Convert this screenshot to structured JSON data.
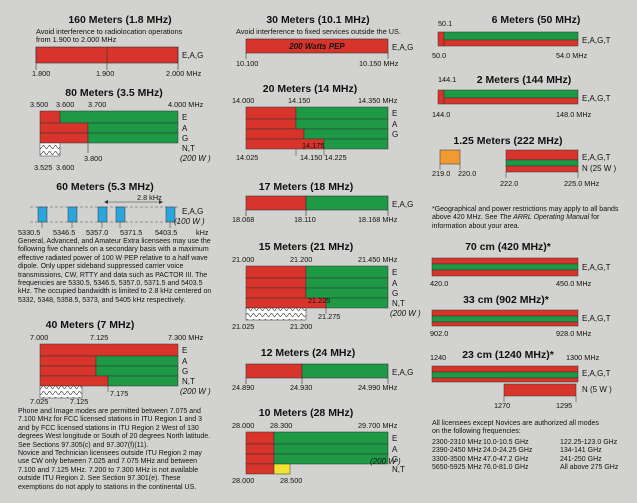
{
  "bands": {
    "m160": {
      "title": "160 Meters (1.8 MHz)",
      "note1": "Avoid interference to radiolocation operations",
      "note2": "from 1.900 to 2.000 MHz",
      "lic": "E,A,G",
      "f1": "1.800",
      "f2": "1.900",
      "f3": "2.000 MHz"
    },
    "m80": {
      "title": "80 Meters (3.5 MHz)",
      "f1": "3.500",
      "f2": "3.600",
      "f3": "3.700",
      "f4": "4.000 MHz",
      "lic_e": "E",
      "lic_a": "A",
      "lic_g": "G",
      "lic_nt": "N,T",
      "power": "(200 W )",
      "f5": "3.800",
      "f6": "3.525",
      "f7": "3.600"
    },
    "m60": {
      "title": "60 Meters (5.3 MHz)",
      "bw": "2.8 kHz",
      "lic": "E,A,G",
      "power": "(100 W )",
      "f1": "5330.5",
      "f2": "5346.5",
      "f3": "5357.0",
      "f4": "5371.5",
      "f5": "5403.5",
      "unit": "kHz"
    },
    "m40": {
      "title": "40 Meters (7 MHz)",
      "f1": "7.000",
      "f2": "7.125",
      "f3": "7.300 MHz",
      "lic_e": "E",
      "lic_a": "A",
      "lic_g": "G",
      "lic_nt": "N,T",
      "power": "(200 W )",
      "f4": "7.175",
      "f5": "7.025",
      "f6": "7.125"
    },
    "m30": {
      "title": "30 Meters (10.1 MHz)",
      "note": "Avoid interference to fixed services outside the US.",
      "pep": "200 Watts PEP",
      "lic": "E,A,G",
      "f1": "10.100",
      "f2": "10.150 MHz"
    },
    "m20": {
      "title": "20 Meters (14 MHz)",
      "f1": "14.000",
      "f2": "14.150",
      "f3": "14.350 MHz",
      "lic_e": "E",
      "lic_a": "A",
      "lic_g": "G",
      "f4": "14.175",
      "f5": "14.025",
      "f6": "14.150 14.225"
    },
    "m17": {
      "title": "17 Meters (18 MHz)",
      "lic": "E,A,G",
      "f1": "18.068",
      "f2": "18.110",
      "f3": "18.168 MHz"
    },
    "m15": {
      "title": "15 Meters (21 MHz)",
      "f1": "21.000",
      "f2": "21.200",
      "f3": "21.450 MHz",
      "lic_e": "E",
      "lic_a": "A",
      "lic_g": "G",
      "lic_nt": "N,T",
      "power": "(200 W )",
      "f4": "21.225",
      "f5": "21.275",
      "f6": "21.025",
      "f7": "21.200"
    },
    "m12": {
      "title": "12 Meters (24 MHz)",
      "lic": "E,A,G",
      "f1": "24.890",
      "f2": "24.930",
      "f3": "24.990 MHz"
    },
    "m10": {
      "title": "10 Meters (28 MHz)",
      "f1": "28.000",
      "f2": "28.300",
      "f3": "29.700 MHz",
      "lic_e": "E",
      "lic_a": "A",
      "lic_g": "G",
      "lic_nt": "N,T",
      "power": "(200 W )",
      "f4": "28.000",
      "f5": "28.500"
    },
    "m6": {
      "title": "6 Meters (50 MHz)",
      "lic": "E,A,G,T",
      "f1": "50.0",
      "f2": "54.0 MHz",
      "f3": "50.1"
    },
    "m2": {
      "title": "2 Meters (144 MHz)",
      "lic": "E,A,G,T",
      "f1": "144.0",
      "f2": "148.0 MHz",
      "f3": "144.1"
    },
    "m125": {
      "title": "1.25 Meters (222 MHz)",
      "lic_eagt": "E,A,G,T",
      "lic_n": "N (25 W )",
      "f1": "219.0",
      "f2": "220.0",
      "f3": "222.0",
      "f4": "225.0 MHz"
    },
    "cm70": {
      "title": "70 cm (420 MHz)*",
      "lic": "E,A,G,T",
      "f1": "420.0",
      "f2": "450.0 MHz"
    },
    "cm33": {
      "title": "33 cm (902 MHz)*",
      "lic": "E,A,G,T",
      "f1": "902.0",
      "f2": "928.0 MHz"
    },
    "cm23": {
      "title": "23 cm (1240 MHz)*",
      "f1": "1240",
      "f2": "1300 MHz",
      "lic_eagt": "E,A,G,T",
      "lic_n": "N (5 W )",
      "f3": "1270",
      "f4": "1295"
    }
  },
  "texts": {
    "sixty": "General, Advanced, and Amateur Extra licensees may use the\nfollowing five channels on a secondary basis with a maximum\neffective radiated power of 100 W PEP relative to a half wave\ndipole. Only upper sideband suppressed carrier voice\ntransmissions, CW, RTTY and data such as PACTOR III. The\nfrequencies are 5330.5, 5346.5, 5357.0, 5371.5 and 5403.5\nkHz. The occupied bandwidth is limited to 2.8 kHz centered on\n5332, 5348, 5358.5, 5373, and 5405 kHz respectively.",
    "phone": "Phone and Image modes are permitted between 7.075 and\n7.100 MHz for FCC licensed stations in ITU Region 1 and 3\nand by FCC licensed stations in ITU Region 2 West of 130\ndegrees West longitude or South of 20 degrees North latitude.\nSee Sections 97.305(c) and 97.307(f)(11).\nNovice and Technician licensees outside ITU Region 2 may\nuse CW only between 7.025 and 7.075 MHz and between\n7.100 and 7.125 MHz. 7.200 to 7.300 MHz is not available\noutside ITU Region 2. See Section 97.301(e). These\nexemptions do not apply to stations in the continental US.",
    "geo1": "*Geographical and power restrictions may apply to all bands\nabove 420 MHz. See ",
    "geo2": "The ARRL Operating Manual",
    "geo3": " for\ninformation about your area.",
    "novice": "All licensees except Novices are authorized all modes\non the following frequencies:",
    "micro1": "2300-2310 MHz\n2390-2450 MHz\n3300-3500 MHz\n5650-5925 MHz",
    "micro2": "10.0-10.5 GHz\n24.0-24.25 GHz\n47.0-47.2 GHz\n76.0-81.0 GHz",
    "micro3": "122.25-123.0 GHz\n134-141 GHz\n241-250 GHz\nAll above 275 GHz"
  }
}
